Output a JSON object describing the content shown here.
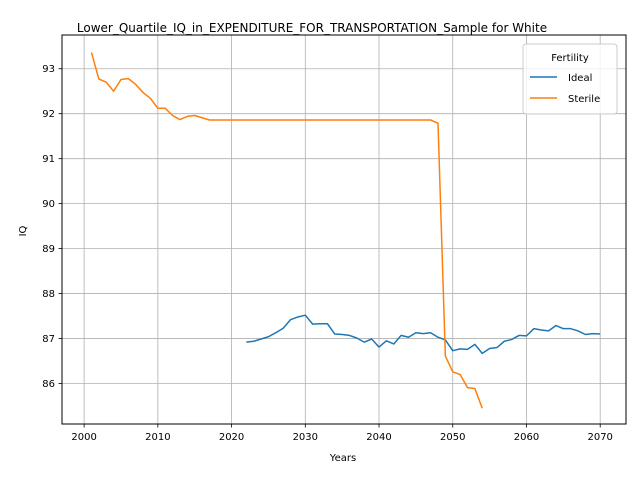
{
  "chart_data": {
    "type": "line",
    "title": "Lower_Quartile_IQ_in_EXPENDITURE_FOR_TRANSPORTATION_Sample for White",
    "xlabel": "Years",
    "ylabel": "IQ",
    "xlim": [
      1997,
      2073.5
    ],
    "ylim": [
      85.1,
      93.75
    ],
    "x_ticks": [
      2000,
      2010,
      2020,
      2030,
      2040,
      2050,
      2060,
      2070
    ],
    "y_ticks": [
      86,
      87,
      88,
      89,
      90,
      91,
      92,
      93
    ],
    "grid": true,
    "legend_title": "Fertility",
    "legend_position": "top-right",
    "series": [
      {
        "name": "Ideal",
        "color": "#1f77b4",
        "x": [
          2022,
          2023,
          2024,
          2025,
          2026,
          2027,
          2028,
          2029,
          2030,
          2031,
          2032,
          2033,
          2034,
          2035,
          2036,
          2037,
          2038,
          2039,
          2040,
          2041,
          2042,
          2043,
          2044,
          2045,
          2046,
          2047,
          2048,
          2049,
          2050,
          2051,
          2052,
          2053,
          2054,
          2055,
          2056,
          2057,
          2058,
          2059,
          2060,
          2061,
          2062,
          2063,
          2064,
          2065,
          2066,
          2067,
          2068,
          2069,
          2070
        ],
        "y": [
          86.92,
          86.94,
          86.99,
          87.04,
          87.13,
          87.23,
          87.42,
          87.48,
          87.52,
          87.32,
          87.33,
          87.33,
          87.1,
          87.09,
          87.07,
          87.01,
          86.92,
          86.99,
          86.81,
          86.95,
          86.88,
          87.07,
          87.03,
          87.13,
          87.11,
          87.13,
          87.03,
          86.97,
          86.73,
          86.77,
          86.76,
          86.87,
          86.67,
          86.78,
          86.8,
          86.94,
          86.98,
          87.07,
          87.06,
          87.22,
          87.19,
          87.17,
          87.29,
          87.22,
          87.22,
          87.17,
          87.09,
          87.11,
          87.1
        ]
      },
      {
        "name": "Sterile",
        "color": "#ff7f0e",
        "x": [
          2001,
          2002,
          2003,
          2004,
          2005,
          2006,
          2007,
          2008,
          2009,
          2010,
          2011,
          2012,
          2013,
          2014,
          2015,
          2016,
          2017,
          2018,
          2019,
          2020,
          2021,
          2022,
          2023,
          2024,
          2025,
          2026,
          2027,
          2028,
          2029,
          2030,
          2031,
          2032,
          2033,
          2034,
          2035,
          2036,
          2037,
          2038,
          2039,
          2040,
          2041,
          2042,
          2043,
          2044,
          2045,
          2046,
          2047,
          2048,
          2049,
          2050,
          2051,
          2052,
          2053,
          2054
        ],
        "y": [
          93.36,
          92.77,
          92.7,
          92.5,
          92.76,
          92.78,
          92.65,
          92.47,
          92.34,
          92.12,
          92.12,
          91.96,
          91.87,
          91.94,
          91.96,
          91.91,
          91.86,
          91.86,
          91.86,
          91.86,
          91.86,
          91.86,
          91.86,
          91.86,
          91.86,
          91.86,
          91.86,
          91.86,
          91.86,
          91.86,
          91.86,
          91.86,
          91.86,
          91.86,
          91.86,
          91.86,
          91.86,
          91.86,
          91.86,
          91.86,
          91.86,
          91.86,
          91.86,
          91.86,
          91.86,
          91.86,
          91.86,
          91.79,
          86.61,
          86.26,
          86.2,
          85.91,
          85.89,
          85.45
        ]
      }
    ]
  }
}
